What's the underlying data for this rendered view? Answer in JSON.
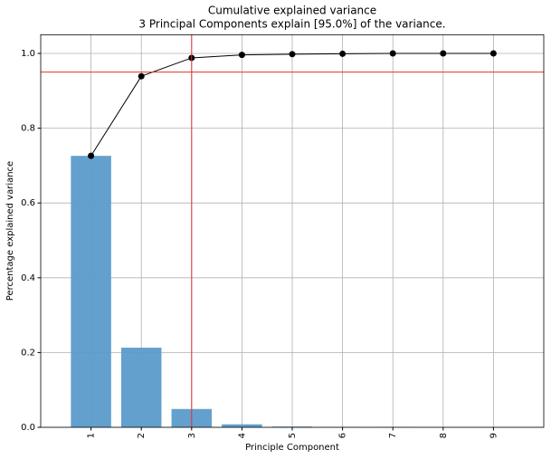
{
  "chart_data": {
    "type": "bar",
    "title": "Cumulative explained variance",
    "subtitle": "3 Principal Components explain [95.0%] of the variance.",
    "x_label": "Principle Component",
    "y_label": "Percentage explained variance",
    "x": [
      1,
      2,
      3,
      4,
      5,
      6,
      7,
      8,
      9
    ],
    "series": [
      {
        "type": "bar",
        "color": "#5b9bcb",
        "values": [
          0.726,
          0.213,
          0.049,
          0.008,
          0.002,
          0.001,
          0.001,
          0.0,
          0.0
        ]
      },
      {
        "type": "line",
        "color": "#000000",
        "values": [
          0.726,
          0.939,
          0.988,
          0.996,
          0.998,
          0.999,
          1.0,
          1.0,
          1.0
        ]
      }
    ],
    "hline": 0.95,
    "vline": 3,
    "reference_color": "#e03030",
    "xlim": [
      0,
      10
    ],
    "xticks": [
      1,
      2,
      3,
      4,
      5,
      6,
      7,
      8,
      9
    ],
    "ylim": [
      0,
      1.05
    ],
    "yticks": [
      {
        "value": 0,
        "label": "0.0"
      },
      0.2,
      0.4,
      0.6,
      0.8,
      {
        "value": 1,
        "label": "1.0"
      }
    ],
    "grid": true
  }
}
